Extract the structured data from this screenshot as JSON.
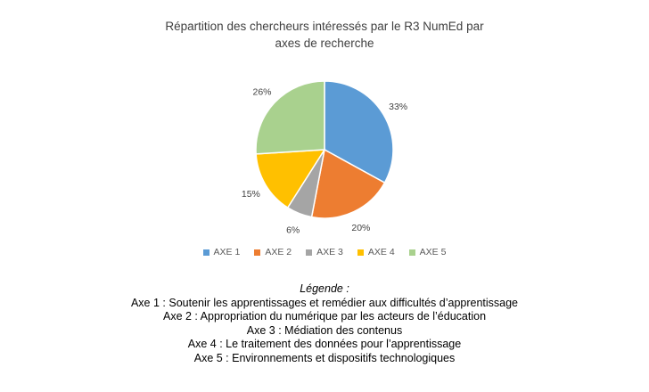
{
  "chart_data": {
    "type": "pie",
    "title_lines": [
      "Répartition des chercheurs intéressés par le R3 NumEd par",
      "axes de recherche"
    ],
    "categories": [
      "AXE 1",
      "AXE 2",
      "AXE 3",
      "AXE 4",
      "AXE 5"
    ],
    "values": [
      33,
      20,
      6,
      15,
      26
    ],
    "data_labels": [
      "33%",
      "20%",
      "6%",
      "15%",
      "26%"
    ],
    "colors": [
      "#5b9bd5",
      "#ed7d31",
      "#a5a5a5",
      "#ffc000",
      "#a9d18e"
    ],
    "legend_position": "bottom"
  },
  "caption": {
    "title": "Légende :",
    "lines": [
      "Axe 1 : Soutenir les apprentissages et remédier aux difficultés d’apprentissage",
      "Axe 2 : Appropriation du numérique par les acteurs de l’éducation",
      "Axe 3 : Médiation des contenus",
      "Axe 4 : Le traitement des données pour l’apprentissage",
      "Axe 5 : Environnements et dispositifs technologiques"
    ]
  }
}
